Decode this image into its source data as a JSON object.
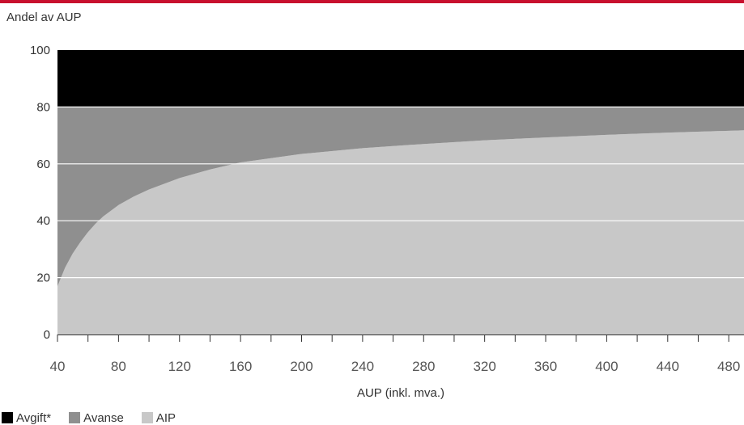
{
  "accent_color": "#c8102e",
  "chart_data": {
    "type": "area",
    "stacked": true,
    "title": "Andel av AUP",
    "xlabel": "AUP (inkl. mva.)",
    "ylabel": "",
    "xlim": [
      40,
      490
    ],
    "ylim": [
      0,
      100
    ],
    "x_ticks": [
      40,
      80,
      120,
      160,
      200,
      240,
      280,
      320,
      360,
      400,
      440,
      480
    ],
    "y_ticks": [
      0,
      20,
      40,
      60,
      80,
      100
    ],
    "grid": true,
    "legend_position": "bottom-left",
    "x": [
      40,
      45,
      50,
      55,
      60,
      65,
      70,
      80,
      90,
      100,
      120,
      140,
      160,
      200,
      240,
      280,
      320,
      360,
      400,
      440,
      490
    ],
    "series": [
      {
        "name": "AIP",
        "color": "#c8c8c8",
        "values": [
          17,
          23.5,
          28.5,
          32.5,
          36,
          39,
          41.5,
          45.5,
          48.5,
          51,
          55,
          58,
          60.5,
          63.5,
          65.5,
          67,
          68.3,
          69.3,
          70.2,
          71,
          71.8
        ]
      },
      {
        "name": "Avanse",
        "color": "#8f8f8f",
        "values": [
          63,
          56.5,
          51.5,
          47.5,
          44,
          41,
          38.5,
          34.5,
          31.5,
          29,
          25,
          22,
          19.5,
          16.5,
          14.5,
          13,
          11.7,
          10.7,
          9.8,
          9,
          8.2
        ]
      },
      {
        "name": "Avgift*",
        "color": "#000000",
        "values": [
          20,
          20,
          20,
          20,
          20,
          20,
          20,
          20,
          20,
          20,
          20,
          20,
          20,
          20,
          20,
          20,
          20,
          20,
          20,
          20,
          20
        ]
      }
    ],
    "legend": [
      {
        "label": "Avgift*",
        "color": "#000000"
      },
      {
        "label": "Avanse",
        "color": "#8f8f8f"
      },
      {
        "label": "AIP",
        "color": "#c8c8c8"
      }
    ]
  }
}
